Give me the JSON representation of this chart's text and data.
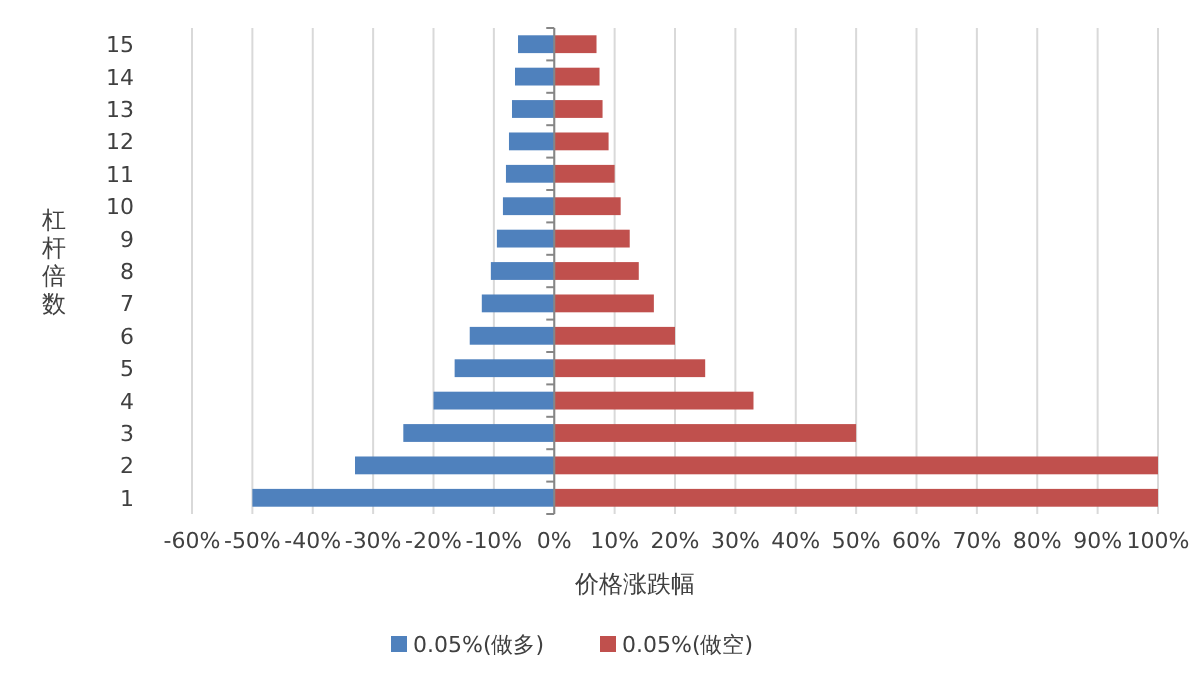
{
  "chart_data": {
    "type": "bar",
    "orientation": "horizontal",
    "stacked": true,
    "categories": [
      "15",
      "14",
      "13",
      "12",
      "11",
      "10",
      "9",
      "8",
      "7",
      "6",
      "5",
      "4",
      "3",
      "2",
      "1"
    ],
    "series": [
      {
        "name": "0.05%(做多)",
        "color": "#4f81bd",
        "values": [
          -6,
          -6.5,
          -7,
          -7.5,
          -8,
          -8.5,
          -9.5,
          -10.5,
          -12,
          -14,
          -16.5,
          -20,
          -25,
          -33,
          -50
        ]
      },
      {
        "name": "0.05%(做空)",
        "color": "#c0504d",
        "values": [
          7,
          7.5,
          8,
          9,
          10,
          11,
          12.5,
          14,
          16.5,
          20,
          25,
          33,
          50,
          100,
          100
        ]
      }
    ],
    "xlim": [
      -60,
      100
    ],
    "xticks": [
      {
        "value": -60,
        "label": "-60%"
      },
      {
        "value": -50,
        "label": "-50%"
      },
      {
        "value": -40,
        "label": "-40%"
      },
      {
        "value": -30,
        "label": "-30%"
      },
      {
        "value": -20,
        "label": "-20%"
      },
      {
        "value": -10,
        "label": "-10%"
      },
      {
        "value": 0,
        "label": "0%"
      },
      {
        "value": 10,
        "label": "10%"
      },
      {
        "value": 20,
        "label": "20%"
      },
      {
        "value": 30,
        "label": "30%"
      },
      {
        "value": 40,
        "label": "40%"
      },
      {
        "value": 50,
        "label": "50%"
      },
      {
        "value": 60,
        "label": "60%"
      },
      {
        "value": 70,
        "label": "70%"
      },
      {
        "value": 80,
        "label": "80%"
      },
      {
        "value": 90,
        "label": "90%"
      },
      {
        "value": 100,
        "label": "100%"
      }
    ],
    "xlabel": "价格涨跌幅",
    "ylabel": "杠杆倍数",
    "grid": "x",
    "legend": "bottom"
  }
}
